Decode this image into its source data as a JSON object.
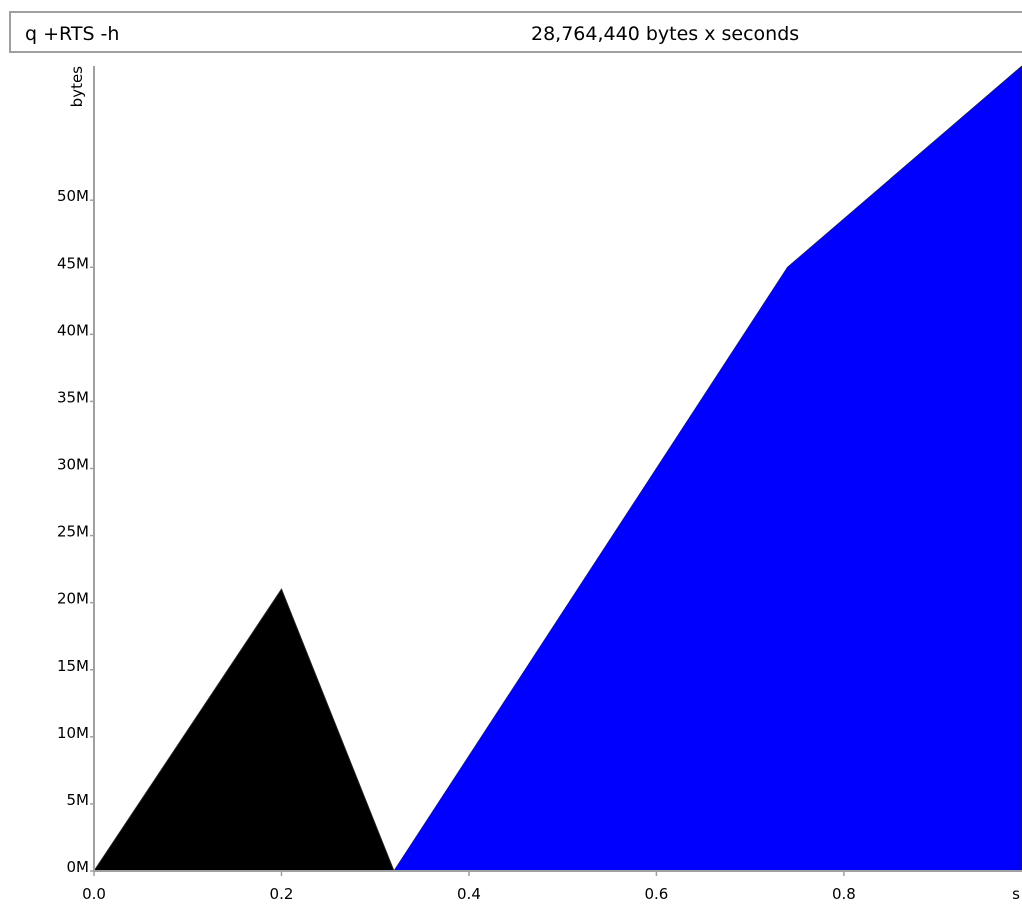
{
  "header": {
    "command": "q +RTS -h",
    "total": "28,764,440 bytes x seconds"
  },
  "colors": {
    "series_0": "#000000",
    "series_1": "#0000ff",
    "axis": "#a0a0a0",
    "header_border": "#a0a0a0"
  },
  "chart_data": {
    "type": "area",
    "title": "",
    "xlabel": "s",
    "ylabel": "bytes",
    "xlim": [
      0.0,
      0.99
    ],
    "ylim": [
      0,
      60000000
    ],
    "x_ticks": [
      0.0,
      0.2,
      0.4,
      0.6,
      0.8
    ],
    "x_tick_labels": [
      "0.0",
      "0.2",
      "0.4",
      "0.6",
      "0.8"
    ],
    "y_ticks": [
      0,
      5000000,
      10000000,
      15000000,
      20000000,
      25000000,
      30000000,
      35000000,
      40000000,
      45000000,
      50000000
    ],
    "y_tick_labels": [
      "0M",
      "5M",
      "10M",
      "15M",
      "20M",
      "25M",
      "30M",
      "35M",
      "40M",
      "45M",
      "50M"
    ],
    "legend": "none",
    "series": [
      {
        "color": "#000000",
        "x": [
          0.0,
          0.2,
          0.32
        ],
        "y": [
          0,
          21000000,
          0
        ]
      },
      {
        "color": "#0000ff",
        "x": [
          0.32,
          0.74,
          0.99,
          0.99
        ],
        "y": [
          0,
          45000000,
          60000000,
          0
        ]
      }
    ]
  }
}
